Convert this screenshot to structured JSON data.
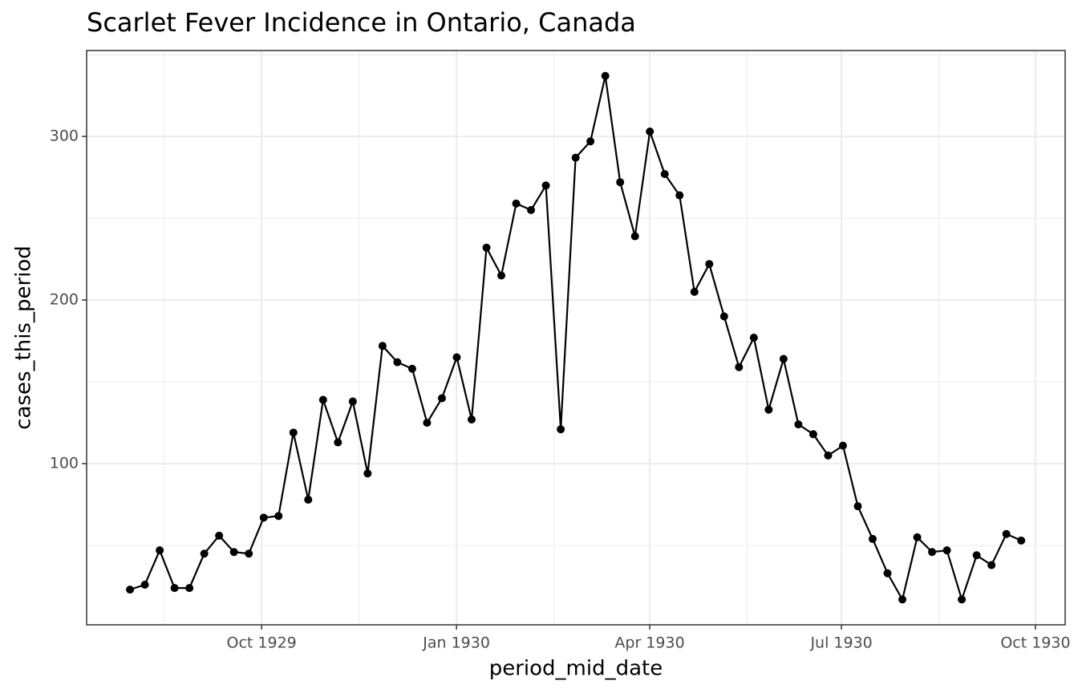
{
  "chart_data": {
    "type": "line",
    "title": "Scarlet Fever Incidence in Ontario, Canada",
    "x_label": "period_mid_date",
    "y_label": "cases_this_period",
    "categories": [
      null,
      null,
      null,
      null,
      null,
      null,
      null,
      null,
      null,
      null,
      null,
      null,
      null,
      null,
      null,
      null,
      null,
      null,
      null,
      null,
      null,
      null,
      null,
      null,
      null,
      null,
      null,
      null,
      null,
      null,
      null,
      null,
      null,
      null,
      null,
      null,
      null,
      null,
      null,
      null,
      null,
      null,
      null,
      null,
      null,
      null,
      null,
      null,
      null,
      null,
      null,
      null,
      null,
      null,
      null,
      null,
      null,
      null,
      null,
      null,
      null
    ],
    "values": [
      23,
      26,
      47,
      24,
      24,
      45,
      56,
      46,
      45,
      67,
      68,
      119,
      78,
      139,
      113,
      138,
      94,
      172,
      162,
      158,
      125,
      140,
      165,
      127,
      232,
      215,
      259,
      255,
      270,
      121,
      287,
      297,
      337,
      272,
      239,
      303,
      277,
      264,
      205,
      222,
      190,
      159,
      177,
      133,
      164,
      124,
      118,
      105,
      111,
      74,
      54,
      33,
      17,
      55,
      46,
      47,
      17,
      44,
      38,
      57,
      53
    ],
    "color": "#000000",
    "xlim": [
      -2.92,
      62.96
    ],
    "xticks": [
      {
        "value": 8.86,
        "label": "Oct 1929"
      },
      {
        "value": 21.98,
        "label": "Jan 1930"
      },
      {
        "value": 34.99,
        "label": "Apr 1930"
      },
      {
        "value": 47.9,
        "label": "Jul 1930"
      },
      {
        "value": 60.96,
        "label": "Oct 1930"
      }
    ],
    "ylim": [
      1.5,
      352.5
    ],
    "yticks": [
      100,
      200,
      300
    ],
    "grid": true
  }
}
